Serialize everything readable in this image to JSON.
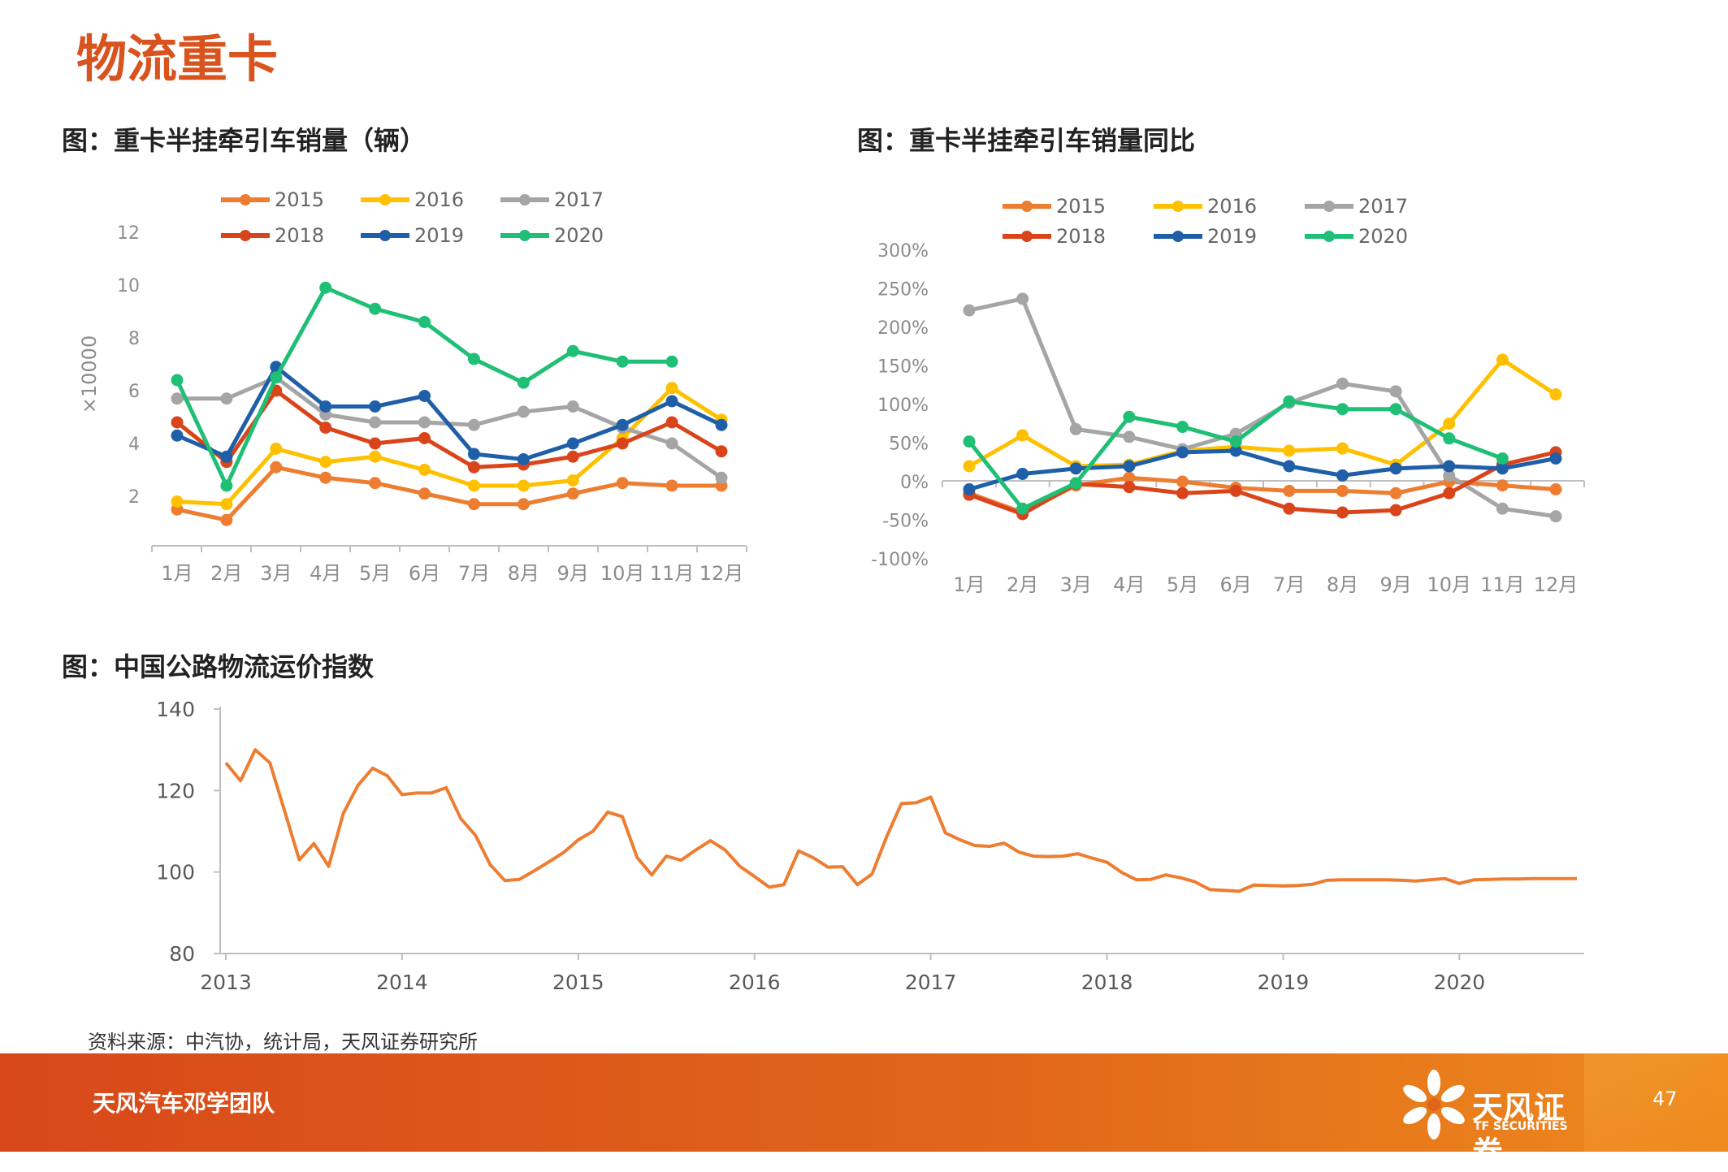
{
  "page_title": "物流重卡",
  "source": "资料来源：中汽协，统计局，天风证券研究所",
  "footer": {
    "team": "天风汽车邓学团队",
    "logo_cn": "天风证券",
    "logo_en": "TF SECURITIES",
    "page_number": "47"
  },
  "colors": {
    "2015": "#ED7D31",
    "2016": "#FFC000",
    "2017": "#A5A5A5",
    "2018": "#D9441B",
    "2019": "#1F5FA8",
    "2020": "#1FBF75",
    "index": "#ED7D31"
  },
  "chart_data": [
    {
      "type": "line",
      "title": "图：重卡半挂牵引车销量（辆）",
      "ylabel": "×10000",
      "categories": [
        "1月",
        "2月",
        "3月",
        "4月",
        "5月",
        "6月",
        "7月",
        "8月",
        "9月",
        "10月",
        "11月",
        "12月"
      ],
      "ylim": [
        0,
        12
      ],
      "yticks": [
        "2",
        "4",
        "6",
        "8",
        "10",
        "12"
      ],
      "series": [
        {
          "name": "2015",
          "values": [
            1.5,
            1.1,
            3.1,
            2.7,
            2.5,
            2.1,
            1.7,
            1.7,
            2.1,
            2.5,
            2.4,
            2.4
          ]
        },
        {
          "name": "2016",
          "values": [
            1.8,
            1.7,
            3.8,
            3.3,
            3.5,
            3.0,
            2.4,
            2.4,
            2.6,
            4.2,
            6.1,
            4.9
          ]
        },
        {
          "name": "2017",
          "values": [
            5.7,
            5.7,
            6.5,
            5.1,
            4.8,
            4.8,
            4.7,
            5.2,
            5.4,
            4.6,
            4.0,
            2.7
          ]
        },
        {
          "name": "2018",
          "values": [
            4.8,
            3.3,
            6.0,
            4.6,
            4.0,
            4.2,
            3.1,
            3.2,
            3.5,
            4.0,
            4.8,
            3.7
          ]
        },
        {
          "name": "2019",
          "values": [
            4.3,
            3.5,
            6.9,
            5.4,
            5.4,
            5.8,
            3.6,
            3.4,
            4.0,
            4.7,
            5.6,
            4.7
          ]
        },
        {
          "name": "2020",
          "values": [
            6.4,
            2.4,
            6.5,
            9.9,
            9.1,
            8.6,
            7.2,
            6.3,
            7.5,
            7.1,
            7.1,
            null
          ]
        }
      ]
    },
    {
      "type": "line",
      "title": "图：重卡半挂牵引车销量同比",
      "categories": [
        "1月",
        "2月",
        "3月",
        "4月",
        "5月",
        "6月",
        "7月",
        "8月",
        "9月",
        "10月",
        "11月",
        "12月"
      ],
      "ylim": [
        -100,
        300
      ],
      "yticks": [
        "300%",
        "250%",
        "200%",
        "150%",
        "100%",
        "50%",
        "0%",
        "-50%",
        "-100%"
      ],
      "series": [
        {
          "name": "2015",
          "values": [
            -15,
            -40,
            -5,
            5,
            0,
            -8,
            -12,
            -12,
            -15,
            0,
            -5,
            -10
          ]
        },
        {
          "name": "2016",
          "values": [
            20,
            60,
            20,
            22,
            40,
            45,
            40,
            43,
            22,
            75,
            158,
            113
          ]
        },
        {
          "name": "2017",
          "values": [
            222,
            237,
            68,
            58,
            42,
            62,
            102,
            127,
            117,
            8,
            -35,
            -45
          ]
        },
        {
          "name": "2018",
          "values": [
            -17,
            -42,
            -3,
            -7,
            -15,
            -12,
            -35,
            -40,
            -37,
            -15,
            22,
            38
          ]
        },
        {
          "name": "2019",
          "values": [
            -10,
            10,
            17,
            20,
            38,
            40,
            20,
            8,
            17,
            20,
            17,
            30
          ]
        },
        {
          "name": "2020",
          "values": [
            52,
            -35,
            -2,
            84,
            71,
            52,
            104,
            94,
            94,
            56,
            30,
            null
          ]
        }
      ]
    },
    {
      "type": "line",
      "title": "图：中国公路物流运价指数",
      "ylim": [
        80,
        140
      ],
      "yticks": [
        "80",
        "100",
        "120",
        "140"
      ],
      "xticks": [
        "2013",
        "2014",
        "2015",
        "2016",
        "2017",
        "2018",
        "2019",
        "2020"
      ],
      "x_start": "2013-01",
      "series": [
        {
          "name": "",
          "values": [
            126.8,
            122.4,
            130,
            126.8,
            115,
            103,
            107,
            101.4,
            114.4,
            121.3,
            125.5,
            123.6,
            119,
            119.4,
            119.4,
            120.7,
            113.1,
            109,
            101.8,
            97.9,
            98.2,
            100.3,
            102.5,
            104.8,
            107.9,
            110,
            114.7,
            113.6,
            103.6,
            99.3,
            103.9,
            102.9,
            105.4,
            107.7,
            105.4,
            101.4,
            98.9,
            96.3,
            96.9,
            105.2,
            103.5,
            101.2,
            101.3,
            96.9,
            99.5,
            108.7,
            116.8,
            117,
            118.4,
            109.6,
            107.9,
            106.5,
            106.3,
            107.1,
            104.9,
            103.9,
            103.8,
            103.9,
            104.5,
            103.4,
            102.4,
            99.9,
            98.1,
            98.2,
            99.3,
            98.6,
            97.6,
            95.7,
            95.5,
            95.3,
            96.8,
            96.7,
            96.6,
            96.7,
            97,
            98,
            98.1,
            98.1,
            98.1,
            98.1,
            98,
            97.8,
            98.1,
            98.4,
            97.2,
            98.1,
            98.2,
            98.3,
            98.3,
            98.4,
            98.4,
            98.4,
            98.4
          ]
        }
      ]
    }
  ]
}
